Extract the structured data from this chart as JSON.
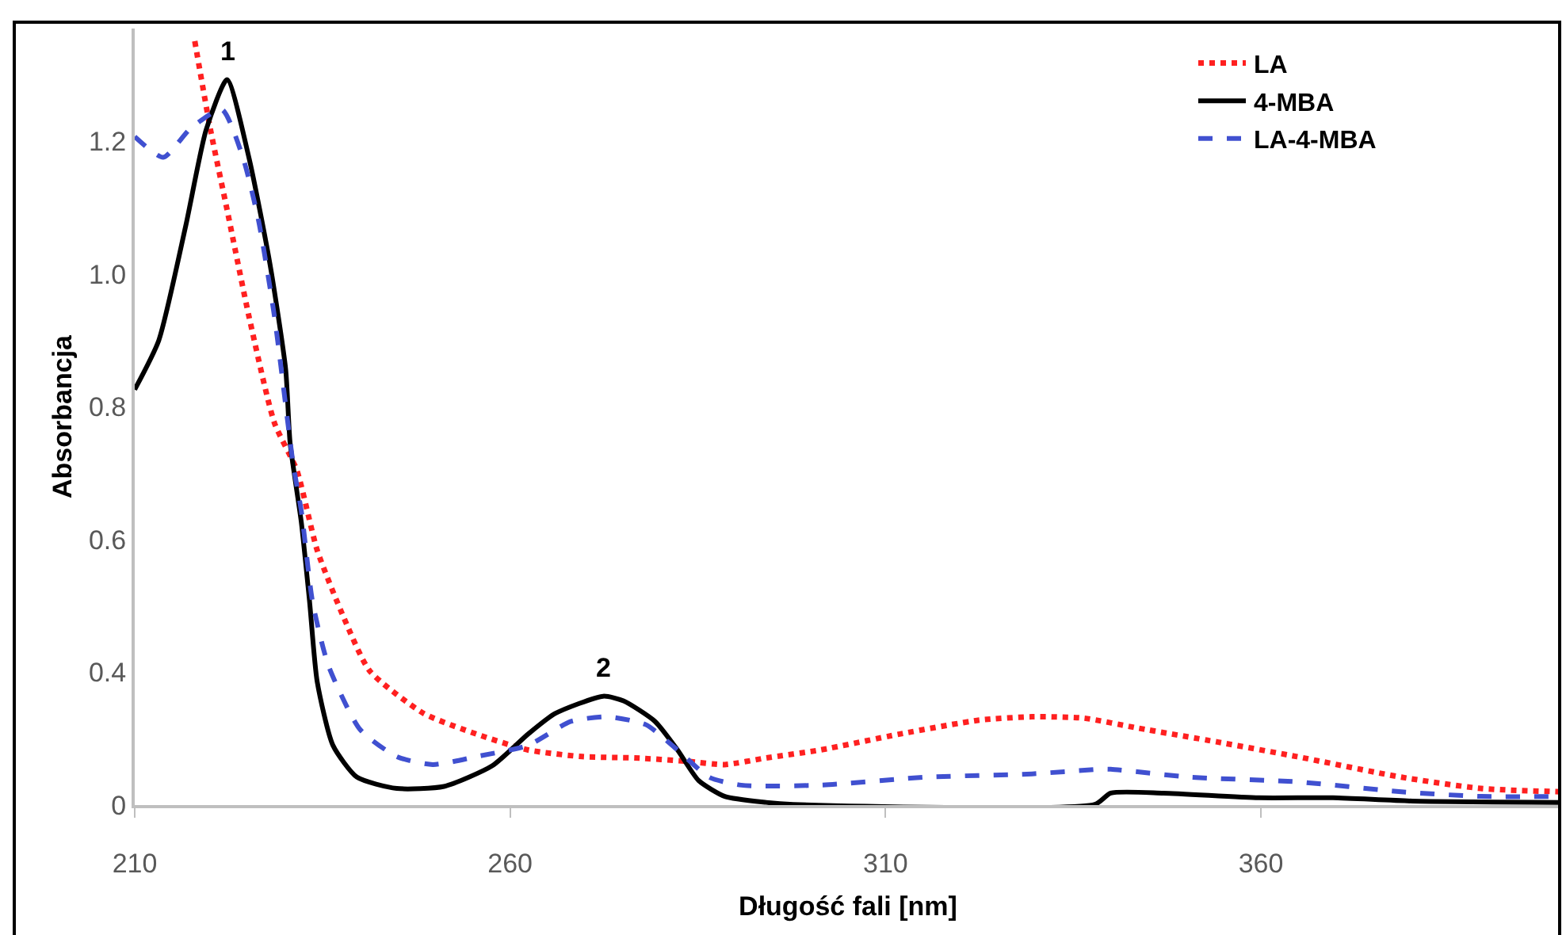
{
  "chart_data": {
    "type": "line",
    "xlabel": "Długość fali [nm]",
    "ylabel": "Absorbancja",
    "xlim": [
      210,
      400
    ],
    "xticks": [
      210,
      260,
      310,
      360
    ],
    "ylim": [
      0.2,
      1.37
    ],
    "yticks": [
      {
        "value": 0.2,
        "label": "0"
      },
      0.4,
      0.6,
      0.8,
      {
        "value": 1,
        "label": "1.0"
      },
      1.2
    ],
    "grid": false,
    "legend": "top right",
    "marker": "none",
    "annotations": [
      {
        "text": "1",
        "x": 222.3,
        "y": 1.293
      },
      {
        "text": "2",
        "x": 272.4,
        "y": 0.364
      }
    ],
    "series": [
      {
        "name": "LA",
        "color": "#ff2020",
        "line_style": "dotted",
        "x": [
          218,
          220.1,
          222.3,
          225.2,
          228.6,
          231.6,
          234.3,
          237.9,
          241.3,
          248.5,
          255.5,
          262.4,
          269.6,
          276.6,
          283.6,
          288.6,
          294.1,
          301.3,
          311.9,
          322.5,
          329.5,
          336.4,
          343.6,
          354.2,
          364.8,
          378.7,
          389.3,
          399.9
        ],
        "values": [
          1.351,
          1.217,
          1.097,
          0.937,
          0.776,
          0.704,
          0.584,
          0.481,
          0.402,
          0.338,
          0.307,
          0.283,
          0.273,
          0.271,
          0.266,
          0.261,
          0.271,
          0.283,
          0.307,
          0.328,
          0.333,
          0.331,
          0.316,
          0.295,
          0.273,
          0.242,
          0.225,
          0.22
        ]
      },
      {
        "name": "4-MBA",
        "color": "#000000",
        "line_style": "solid",
        "x": [
          210,
          213.2,
          216.8,
          219.5,
          222.3,
          225.2,
          228,
          230.1,
          230.7,
          232.2,
          233.3,
          234.3,
          236.4,
          239.6,
          244.9,
          251.2,
          257.6,
          262.4,
          266,
          272.4,
          275.1,
          279.3,
          282.3,
          285.1,
          288.6,
          294.1,
          297.7,
          337.9,
          340,
          347,
          359.7,
          369.6,
          380.2,
          399.9
        ],
        "values": [
          0.826,
          0.9,
          1.073,
          1.217,
          1.293,
          1.176,
          1.016,
          0.857,
          0.745,
          0.625,
          0.505,
          0.386,
          0.29,
          0.242,
          0.225,
          0.228,
          0.259,
          0.307,
          0.338,
          0.364,
          0.357,
          0.326,
          0.283,
          0.237,
          0.213,
          0.204,
          0.201,
          0.201,
          0.218,
          0.218,
          0.211,
          0.211,
          0.206,
          0.204
        ]
      },
      {
        "name": "LA-4-MBA",
        "color": "#4050d0",
        "line_style": "dashed",
        "x": [
          210,
          213.8,
          217.4,
          221.6,
          224.4,
          226.5,
          228.6,
          231.1,
          232.2,
          233.7,
          235.8,
          240,
          244.9,
          249.7,
          255.5,
          262.4,
          268.1,
          273,
          278.1,
          282.3,
          286.5,
          290.8,
          301.3,
          315.3,
          329.5,
          338.5,
          340,
          350.6,
          364.8,
          378.7,
          389.3,
          399.9
        ],
        "values": [
          1.207,
          1.176,
          1.219,
          1.248,
          1.176,
          1.08,
          0.937,
          0.714,
          0.642,
          0.505,
          0.41,
          0.314,
          0.273,
          0.261,
          0.273,
          0.29,
          0.326,
          0.333,
          0.321,
          0.283,
          0.242,
          0.23,
          0.23,
          0.242,
          0.247,
          0.254,
          0.254,
          0.242,
          0.235,
          0.22,
          0.213,
          0.213
        ]
      }
    ]
  }
}
